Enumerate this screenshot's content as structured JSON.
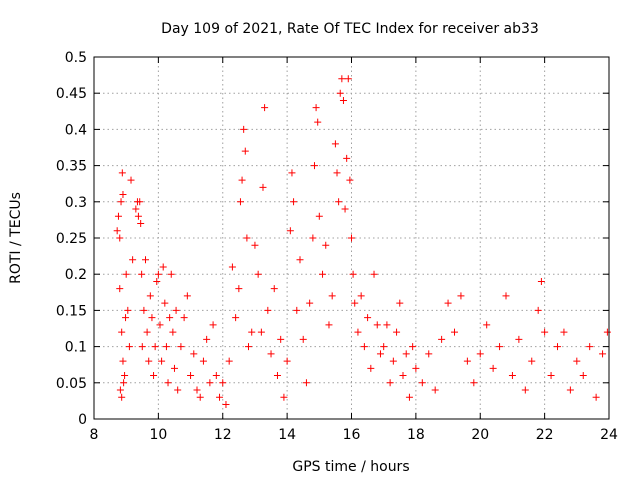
{
  "chart_data": {
    "type": "scatter",
    "title": "Day 109 of 2021, Rate Of TEC Index for receiver ab33",
    "xlabel": "GPS time / hours",
    "ylabel": "ROTI / TECUs",
    "xlim": [
      8,
      24
    ],
    "ylim": [
      0,
      0.5
    ],
    "x_ticks": [
      8,
      10,
      12,
      14,
      16,
      18,
      20,
      22,
      24
    ],
    "y_ticks": [
      0,
      0.05,
      0.1,
      0.15,
      0.2,
      0.25,
      0.3,
      0.35,
      0.4,
      0.45,
      0.5
    ],
    "x_tick_labels": [
      "8",
      "10",
      "12",
      "14",
      "16",
      "18",
      "20",
      "22",
      "24"
    ],
    "y_tick_labels": [
      "0",
      "0.05",
      "0.1",
      "0.15",
      "0.2",
      "0.25",
      "0.3",
      "0.35",
      "0.4",
      "0.45",
      "0.5"
    ],
    "grid": true,
    "marker": "+",
    "color": "#ff0000",
    "points_note": "",
    "points": [
      [
        8.72,
        0.26
      ],
      [
        8.76,
        0.28
      ],
      [
        8.8,
        0.25
      ],
      [
        8.84,
        0.3
      ],
      [
        8.88,
        0.34
      ],
      [
        8.9,
        0.31
      ],
      [
        8.8,
        0.18
      ],
      [
        8.86,
        0.12
      ],
      [
        8.9,
        0.08
      ],
      [
        8.82,
        0.04
      ],
      [
        8.86,
        0.03
      ],
      [
        8.92,
        0.05
      ],
      [
        8.95,
        0.06
      ],
      [
        8.98,
        0.14
      ],
      [
        9.0,
        0.2
      ],
      [
        9.05,
        0.15
      ],
      [
        9.1,
        0.1
      ],
      [
        9.15,
        0.33
      ],
      [
        9.2,
        0.22
      ],
      [
        9.3,
        0.29
      ],
      [
        9.35,
        0.3
      ],
      [
        9.38,
        0.28
      ],
      [
        9.42,
        0.3
      ],
      [
        9.45,
        0.27
      ],
      [
        9.48,
        0.2
      ],
      [
        9.5,
        0.1
      ],
      [
        9.55,
        0.15
      ],
      [
        9.6,
        0.22
      ],
      [
        9.65,
        0.12
      ],
      [
        9.7,
        0.08
      ],
      [
        9.75,
        0.17
      ],
      [
        9.8,
        0.14
      ],
      [
        9.85,
        0.06
      ],
      [
        9.9,
        0.1
      ],
      [
        9.95,
        0.19
      ],
      [
        10.0,
        0.2
      ],
      [
        10.05,
        0.13
      ],
      [
        10.1,
        0.08
      ],
      [
        10.15,
        0.21
      ],
      [
        10.2,
        0.16
      ],
      [
        10.25,
        0.1
      ],
      [
        10.3,
        0.05
      ],
      [
        10.35,
        0.14
      ],
      [
        10.4,
        0.2
      ],
      [
        10.45,
        0.12
      ],
      [
        10.5,
        0.07
      ],
      [
        10.55,
        0.15
      ],
      [
        10.6,
        0.04
      ],
      [
        10.7,
        0.1
      ],
      [
        10.8,
        0.14
      ],
      [
        10.9,
        0.17
      ],
      [
        11.0,
        0.06
      ],
      [
        11.1,
        0.09
      ],
      [
        11.2,
        0.04
      ],
      [
        11.3,
        0.03
      ],
      [
        11.4,
        0.08
      ],
      [
        11.5,
        0.11
      ],
      [
        11.6,
        0.05
      ],
      [
        11.7,
        0.13
      ],
      [
        11.8,
        0.06
      ],
      [
        11.9,
        0.03
      ],
      [
        12.0,
        0.05
      ],
      [
        12.1,
        0.02
      ],
      [
        12.2,
        0.08
      ],
      [
        12.3,
        0.21
      ],
      [
        12.4,
        0.14
      ],
      [
        12.5,
        0.18
      ],
      [
        12.55,
        0.3
      ],
      [
        12.6,
        0.33
      ],
      [
        12.65,
        0.4
      ],
      [
        12.7,
        0.37
      ],
      [
        12.75,
        0.25
      ],
      [
        12.8,
        0.1
      ],
      [
        12.9,
        0.12
      ],
      [
        13.0,
        0.24
      ],
      [
        13.1,
        0.2
      ],
      [
        13.2,
        0.12
      ],
      [
        13.25,
        0.32
      ],
      [
        13.3,
        0.43
      ],
      [
        13.4,
        0.15
      ],
      [
        13.5,
        0.09
      ],
      [
        13.6,
        0.18
      ],
      [
        13.7,
        0.06
      ],
      [
        13.8,
        0.11
      ],
      [
        13.9,
        0.03
      ],
      [
        14.0,
        0.08
      ],
      [
        14.1,
        0.26
      ],
      [
        14.15,
        0.34
      ],
      [
        14.2,
        0.3
      ],
      [
        14.3,
        0.15
      ],
      [
        14.4,
        0.22
      ],
      [
        14.5,
        0.11
      ],
      [
        14.6,
        0.05
      ],
      [
        14.7,
        0.16
      ],
      [
        14.8,
        0.25
      ],
      [
        14.85,
        0.35
      ],
      [
        14.9,
        0.43
      ],
      [
        14.95,
        0.41
      ],
      [
        15.0,
        0.28
      ],
      [
        15.1,
        0.2
      ],
      [
        15.2,
        0.24
      ],
      [
        15.3,
        0.13
      ],
      [
        15.4,
        0.17
      ],
      [
        15.5,
        0.38
      ],
      [
        15.55,
        0.34
      ],
      [
        15.6,
        0.3
      ],
      [
        15.65,
        0.45
      ],
      [
        15.7,
        0.47
      ],
      [
        15.75,
        0.44
      ],
      [
        15.8,
        0.29
      ],
      [
        15.85,
        0.36
      ],
      [
        15.9,
        0.47
      ],
      [
        15.95,
        0.33
      ],
      [
        16.0,
        0.25
      ],
      [
        16.05,
        0.2
      ],
      [
        16.1,
        0.16
      ],
      [
        16.2,
        0.12
      ],
      [
        16.3,
        0.17
      ],
      [
        16.4,
        0.1
      ],
      [
        16.5,
        0.14
      ],
      [
        16.6,
        0.07
      ],
      [
        16.7,
        0.2
      ],
      [
        16.8,
        0.13
      ],
      [
        16.9,
        0.09
      ],
      [
        17.0,
        0.1
      ],
      [
        17.1,
        0.13
      ],
      [
        17.2,
        0.05
      ],
      [
        17.3,
        0.08
      ],
      [
        17.4,
        0.12
      ],
      [
        17.5,
        0.16
      ],
      [
        17.6,
        0.06
      ],
      [
        17.7,
        0.09
      ],
      [
        17.8,
        0.03
      ],
      [
        17.9,
        0.1
      ],
      [
        18.0,
        0.07
      ],
      [
        18.2,
        0.05
      ],
      [
        18.4,
        0.09
      ],
      [
        18.6,
        0.04
      ],
      [
        18.8,
        0.11
      ],
      [
        19.0,
        0.16
      ],
      [
        19.2,
        0.12
      ],
      [
        19.4,
        0.17
      ],
      [
        19.6,
        0.08
      ],
      [
        19.8,
        0.05
      ],
      [
        20.0,
        0.09
      ],
      [
        20.2,
        0.13
      ],
      [
        20.4,
        0.07
      ],
      [
        20.6,
        0.1
      ],
      [
        20.8,
        0.17
      ],
      [
        21.0,
        0.06
      ],
      [
        21.2,
        0.11
      ],
      [
        21.4,
        0.04
      ],
      [
        21.6,
        0.08
      ],
      [
        21.8,
        0.15
      ],
      [
        21.9,
        0.19
      ],
      [
        22.0,
        0.12
      ],
      [
        22.2,
        0.06
      ],
      [
        22.4,
        0.1
      ],
      [
        22.6,
        0.12
      ],
      [
        22.8,
        0.04
      ],
      [
        23.0,
        0.08
      ],
      [
        23.2,
        0.06
      ],
      [
        23.4,
        0.1
      ],
      [
        23.6,
        0.03
      ],
      [
        23.8,
        0.09
      ],
      [
        23.95,
        0.12
      ]
    ]
  }
}
